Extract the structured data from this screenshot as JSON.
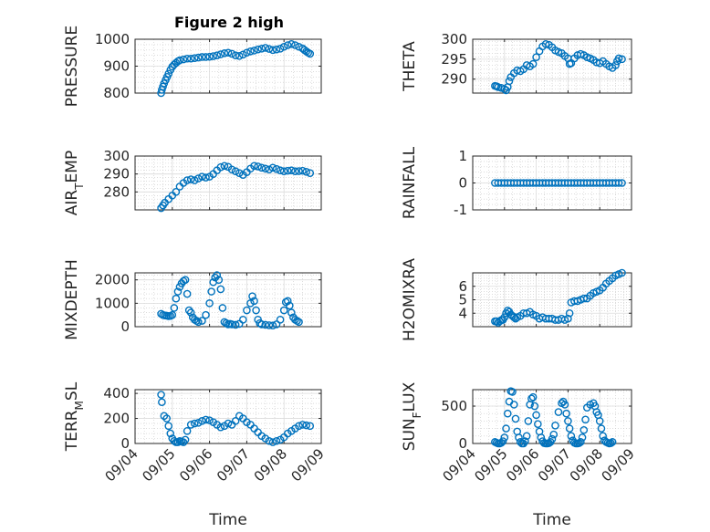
{
  "figure": {
    "title": "Figure 2 high",
    "colors": {
      "marker": "#0072BD",
      "axis": "#262626",
      "grid": "#c8c8c8"
    }
  },
  "chart_data": [
    {
      "id": "pressure",
      "type": "scatter",
      "ylabel": "PRESSURE",
      "ylabel_sub": "",
      "ylabel_post": "",
      "ylim": [
        800,
        1000
      ],
      "yticks": [
        800,
        900,
        1000
      ],
      "ytick_labels": [
        "800",
        "900",
        "1000"
      ],
      "xlim": [
        0,
        5
      ],
      "xticks": [
        0,
        1,
        2,
        3,
        4,
        5
      ],
      "xtick_labels": [
        "09/04",
        "09/05",
        "09/06",
        "09/07",
        "09/08",
        "09/09"
      ],
      "show_xtick_labels": false,
      "xlabel": "",
      "grid": true,
      "minor_grid": true,
      "series_name": "",
      "x": [
        0.7,
        0.72,
        0.75,
        0.78,
        0.82,
        0.86,
        0.9,
        0.95,
        1.0,
        1.05,
        1.1,
        1.15,
        1.2,
        1.3,
        1.4,
        1.5,
        1.6,
        1.7,
        1.8,
        1.9,
        2.0,
        2.1,
        2.2,
        2.3,
        2.4,
        2.5,
        2.6,
        2.7,
        2.8,
        2.9,
        3.0,
        3.1,
        3.2,
        3.3,
        3.4,
        3.5,
        3.6,
        3.7,
        3.8,
        3.9,
        4.0,
        4.1,
        4.2,
        4.3,
        4.4,
        4.5,
        4.55,
        4.6,
        4.65,
        4.7
      ],
      "values": [
        800,
        812,
        824,
        836,
        848,
        860,
        872,
        886,
        898,
        906,
        912,
        918,
        922,
        925,
        928,
        928,
        930,
        932,
        934,
        934,
        935,
        937,
        940,
        944,
        948,
        950,
        946,
        940,
        938,
        943,
        950,
        955,
        958,
        962,
        965,
        968,
        964,
        960,
        962,
        965,
        972,
        978,
        982,
        978,
        972,
        966,
        960,
        955,
        950,
        946
      ]
    },
    {
      "id": "theta",
      "type": "scatter",
      "ylabel": "THETA",
      "ylabel_sub": "",
      "ylabel_post": "",
      "ylim": [
        286.5,
        300
      ],
      "yticks": [
        290,
        295,
        300
      ],
      "ytick_labels": [
        "290",
        "295",
        "300"
      ],
      "xlim": [
        0,
        5
      ],
      "xticks": [
        0,
        1,
        2,
        3,
        4,
        5
      ],
      "xtick_labels": [
        "09/04",
        "09/05",
        "09/06",
        "09/07",
        "09/08",
        "09/09"
      ],
      "show_xtick_labels": false,
      "xlabel": "",
      "grid": true,
      "minor_grid": true,
      "series_name": "",
      "x": [
        0.7,
        0.75,
        0.8,
        0.9,
        1.0,
        1.05,
        1.1,
        1.15,
        1.2,
        1.3,
        1.4,
        1.5,
        1.6,
        1.7,
        1.8,
        1.9,
        2.0,
        2.1,
        2.2,
        2.3,
        2.4,
        2.5,
        2.6,
        2.7,
        2.8,
        2.9,
        3.0,
        3.05,
        3.1,
        3.2,
        3.3,
        3.4,
        3.5,
        3.6,
        3.7,
        3.8,
        3.9,
        4.0,
        4.1,
        4.2,
        4.3,
        4.4,
        4.5,
        4.55,
        4.6,
        4.7
      ],
      "values": [
        288.3,
        288.2,
        288.0,
        287.8,
        287.5,
        287.2,
        288.0,
        289.5,
        290.5,
        291.5,
        292.2,
        292.0,
        292.5,
        293.5,
        293.2,
        293.8,
        295.5,
        297.0,
        298.2,
        298.8,
        298.6,
        298.0,
        297.2,
        296.8,
        296.5,
        295.8,
        295.2,
        293.8,
        294.0,
        295.2,
        296.0,
        296.3,
        296.0,
        295.5,
        295.2,
        294.8,
        294.2,
        294.0,
        294.5,
        293.8,
        293.2,
        292.8,
        293.5,
        294.5,
        295.2,
        295.0
      ]
    },
    {
      "id": "air-temp",
      "type": "scatter",
      "ylabel": "AIR",
      "ylabel_sub": "T",
      "ylabel_post": "EMP",
      "ylim": [
        270,
        300
      ],
      "yticks": [
        280,
        290,
        300
      ],
      "ytick_labels": [
        "280",
        "290",
        "300"
      ],
      "xlim": [
        0,
        5
      ],
      "xticks": [
        0,
        1,
        2,
        3,
        4,
        5
      ],
      "xtick_labels": [
        "09/04",
        "09/05",
        "09/06",
        "09/07",
        "09/08",
        "09/09"
      ],
      "show_xtick_labels": false,
      "xlabel": "",
      "grid": true,
      "minor_grid": true,
      "series_name": "",
      "x": [
        0.7,
        0.75,
        0.8,
        0.9,
        1.0,
        1.1,
        1.2,
        1.3,
        1.4,
        1.5,
        1.6,
        1.7,
        1.8,
        1.9,
        2.0,
        2.1,
        2.2,
        2.3,
        2.4,
        2.5,
        2.6,
        2.7,
        2.8,
        2.9,
        3.0,
        3.1,
        3.2,
        3.3,
        3.4,
        3.5,
        3.6,
        3.7,
        3.8,
        3.9,
        4.0,
        4.1,
        4.2,
        4.3,
        4.4,
        4.5,
        4.6,
        4.7
      ],
      "values": [
        271,
        272.5,
        274,
        276,
        278,
        280,
        283,
        285,
        286.5,
        287,
        286.5,
        287.5,
        288.5,
        288,
        288.5,
        290,
        292,
        293.8,
        294.5,
        294,
        292.5,
        291.5,
        290.5,
        289.5,
        291,
        293,
        294.5,
        294.2,
        293.5,
        293,
        292.5,
        293.5,
        292.8,
        292,
        291.5,
        291.8,
        292,
        291.5,
        291.6,
        291.8,
        291.2,
        290.5
      ]
    },
    {
      "id": "rainfall",
      "type": "scatter",
      "ylabel": "RAINFALL",
      "ylabel_sub": "",
      "ylabel_post": "",
      "ylim": [
        -1,
        1
      ],
      "yticks": [
        -1,
        0,
        1
      ],
      "ytick_labels": [
        "-1",
        "0",
        "1"
      ],
      "xlim": [
        0,
        5
      ],
      "xticks": [
        0,
        1,
        2,
        3,
        4,
        5
      ],
      "xtick_labels": [
        "09/04",
        "09/05",
        "09/06",
        "09/07",
        "09/08",
        "09/09"
      ],
      "show_xtick_labels": false,
      "xlabel": "",
      "grid": true,
      "minor_grid": true,
      "series_name": "",
      "x": [
        0.7,
        0.8,
        0.9,
        1.0,
        1.1,
        1.2,
        1.3,
        1.4,
        1.5,
        1.6,
        1.7,
        1.8,
        1.9,
        2.0,
        2.1,
        2.2,
        2.3,
        2.4,
        2.5,
        2.6,
        2.7,
        2.8,
        2.9,
        3.0,
        3.1,
        3.2,
        3.3,
        3.4,
        3.5,
        3.6,
        3.7,
        3.8,
        3.9,
        4.0,
        4.1,
        4.2,
        4.3,
        4.4,
        4.5,
        4.6,
        4.7
      ],
      "values": [
        0,
        0,
        0,
        0,
        0,
        0,
        0,
        0,
        0,
        0,
        0,
        0,
        0,
        0,
        0,
        0,
        0,
        0,
        0,
        0,
        0,
        0,
        0,
        0,
        0,
        0,
        0,
        0,
        0,
        0,
        0,
        0,
        0,
        0,
        0,
        0,
        0,
        0,
        0,
        0,
        0
      ]
    },
    {
      "id": "mixdepth",
      "type": "scatter",
      "ylabel": "MIXDEPTH",
      "ylabel_sub": "",
      "ylabel_post": "",
      "ylim": [
        0,
        2300
      ],
      "yticks": [
        0,
        1000,
        2000
      ],
      "ytick_labels": [
        "0",
        "1000",
        "2000"
      ],
      "xlim": [
        0,
        5
      ],
      "xticks": [
        0,
        1,
        2,
        3,
        4,
        5
      ],
      "xtick_labels": [
        "09/04",
        "09/05",
        "09/06",
        "09/07",
        "09/08",
        "09/09"
      ],
      "show_xtick_labels": false,
      "xlabel": "",
      "grid": true,
      "minor_grid": true,
      "series_name": "",
      "x": [
        0.7,
        0.75,
        0.8,
        0.85,
        0.9,
        0.95,
        1.0,
        1.05,
        1.1,
        1.15,
        1.2,
        1.25,
        1.3,
        1.35,
        1.4,
        1.45,
        1.5,
        1.55,
        1.6,
        1.65,
        1.7,
        1.8,
        1.9,
        2.0,
        2.05,
        2.1,
        2.15,
        2.2,
        2.25,
        2.3,
        2.35,
        2.4,
        2.45,
        2.5,
        2.55,
        2.6,
        2.7,
        2.8,
        2.9,
        3.0,
        3.1,
        3.15,
        3.2,
        3.25,
        3.3,
        3.35,
        3.4,
        3.5,
        3.6,
        3.7,
        3.8,
        3.9,
        4.0,
        4.05,
        4.1,
        4.15,
        4.2,
        4.25,
        4.3,
        4.35,
        4.4
      ],
      "values": [
        550,
        500,
        480,
        470,
        450,
        460,
        500,
        800,
        1200,
        1500,
        1700,
        1850,
        1950,
        2000,
        1400,
        700,
        600,
        400,
        300,
        250,
        200,
        250,
        500,
        1000,
        1500,
        1900,
        2100,
        2200,
        2000,
        1600,
        800,
        200,
        150,
        100,
        120,
        100,
        80,
        120,
        300,
        700,
        1000,
        1300,
        1100,
        700,
        300,
        150,
        100,
        80,
        60,
        50,
        100,
        300,
        700,
        1050,
        1100,
        900,
        600,
        400,
        300,
        250,
        200
      ]
    },
    {
      "id": "h2omixra",
      "type": "scatter",
      "ylabel": "H2OMIXRA",
      "ylabel_sub": "",
      "ylabel_post": "",
      "ylim": [
        3,
        7
      ],
      "yticks": [
        4,
        5,
        6
      ],
      "ytick_labels": [
        "4",
        "5",
        "6"
      ],
      "xlim": [
        0,
        5
      ],
      "xticks": [
        0,
        1,
        2,
        3,
        4,
        5
      ],
      "xtick_labels": [
        "09/04",
        "09/05",
        "09/06",
        "09/07",
        "09/08",
        "09/09"
      ],
      "show_xtick_labels": false,
      "xlabel": "",
      "grid": true,
      "minor_grid": true,
      "series_name": "",
      "x": [
        0.7,
        0.75,
        0.8,
        0.85,
        0.9,
        0.95,
        1.0,
        1.05,
        1.1,
        1.15,
        1.2,
        1.25,
        1.3,
        1.35,
        1.4,
        1.5,
        1.6,
        1.7,
        1.8,
        1.9,
        2.0,
        2.1,
        2.2,
        2.3,
        2.4,
        2.5,
        2.6,
        2.7,
        2.8,
        2.9,
        3.0,
        3.05,
        3.1,
        3.2,
        3.3,
        3.4,
        3.5,
        3.6,
        3.7,
        3.8,
        3.9,
        4.0,
        4.1,
        4.2,
        4.3,
        4.4,
        4.5,
        4.6,
        4.7
      ],
      "values": [
        3.4,
        3.4,
        3.3,
        3.4,
        3.5,
        3.5,
        3.7,
        4.0,
        4.2,
        4.1,
        3.9,
        3.8,
        3.7,
        3.6,
        3.7,
        3.8,
        4.0,
        4.0,
        4.1,
        3.9,
        3.8,
        3.6,
        3.7,
        3.6,
        3.6,
        3.6,
        3.5,
        3.5,
        3.6,
        3.5,
        3.6,
        4.0,
        4.8,
        4.9,
        4.9,
        5.0,
        5.1,
        5.1,
        5.3,
        5.5,
        5.6,
        5.7,
        5.9,
        6.2,
        6.4,
        6.6,
        6.8,
        6.9,
        7.0
      ]
    },
    {
      "id": "terr-msl",
      "type": "scatter",
      "ylabel": "TERR",
      "ylabel_sub": "M",
      "ylabel_post": "SL",
      "ylim": [
        0,
        430
      ],
      "yticks": [
        0,
        200,
        400
      ],
      "ytick_labels": [
        "0",
        "200",
        "400"
      ],
      "xlim": [
        0,
        5
      ],
      "xticks": [
        0,
        1,
        2,
        3,
        4,
        5
      ],
      "xtick_labels": [
        "09/04",
        "09/05",
        "09/06",
        "09/07",
        "09/08",
        "09/09"
      ],
      "show_xtick_labels": true,
      "xlabel": "Time",
      "grid": true,
      "minor_grid": true,
      "series_name": "",
      "x": [
        0.7,
        0.72,
        0.78,
        0.85,
        0.9,
        0.95,
        1.0,
        1.05,
        1.1,
        1.15,
        1.2,
        1.25,
        1.3,
        1.35,
        1.4,
        1.5,
        1.6,
        1.7,
        1.8,
        1.9,
        2.0,
        2.1,
        2.2,
        2.3,
        2.4,
        2.5,
        2.6,
        2.7,
        2.8,
        2.9,
        3.0,
        3.1,
        3.2,
        3.3,
        3.4,
        3.5,
        3.6,
        3.7,
        3.8,
        3.9,
        4.0,
        4.1,
        4.2,
        4.3,
        4.4,
        4.5,
        4.6,
        4.7
      ],
      "values": [
        390,
        330,
        220,
        200,
        140,
        80,
        40,
        20,
        10,
        10,
        20,
        15,
        10,
        30,
        100,
        150,
        160,
        165,
        180,
        190,
        185,
        170,
        150,
        130,
        140,
        160,
        150,
        180,
        220,
        200,
        170,
        150,
        120,
        90,
        60,
        40,
        20,
        10,
        20,
        30,
        50,
        80,
        100,
        120,
        140,
        150,
        145,
        140
      ]
    },
    {
      "id": "sun-flux",
      "type": "scatter",
      "ylabel": "SUN",
      "ylabel_sub": "F",
      "ylabel_post": "LUX",
      "ylim": [
        0,
        720
      ],
      "yticks": [
        0,
        500
      ],
      "ytick_labels": [
        "0",
        "500"
      ],
      "xlim": [
        0,
        5
      ],
      "xticks": [
        0,
        1,
        2,
        3,
        4,
        5
      ],
      "xtick_labels": [
        "09/04",
        "09/05",
        "09/06",
        "09/07",
        "09/08",
        "09/09"
      ],
      "show_xtick_labels": true,
      "xlabel": "Time",
      "grid": true,
      "minor_grid": true,
      "series_name": "",
      "x": [
        0.7,
        0.75,
        0.8,
        0.85,
        0.9,
        0.95,
        1.0,
        1.05,
        1.1,
        1.15,
        1.2,
        1.25,
        1.3,
        1.35,
        1.4,
        1.45,
        1.5,
        1.55,
        1.6,
        1.65,
        1.7,
        1.75,
        1.8,
        1.85,
        1.9,
        1.95,
        2.0,
        2.05,
        2.1,
        2.15,
        2.2,
        2.25,
        2.3,
        2.35,
        2.4,
        2.45,
        2.5,
        2.55,
        2.6,
        2.7,
        2.8,
        2.85,
        2.9,
        2.95,
        3.0,
        3.05,
        3.1,
        3.15,
        3.2,
        3.25,
        3.3,
        3.35,
        3.4,
        3.45,
        3.5,
        3.55,
        3.6,
        3.7,
        3.8,
        3.85,
        3.9,
        3.95,
        4.0,
        4.05,
        4.1,
        4.15,
        4.2,
        4.25,
        4.3,
        4.35,
        4.4
      ],
      "values": [
        20,
        10,
        0,
        0,
        10,
        30,
        80,
        200,
        400,
        560,
        700,
        690,
        520,
        330,
        160,
        80,
        20,
        0,
        0,
        30,
        100,
        300,
        520,
        600,
        620,
        500,
        380,
        260,
        160,
        80,
        30,
        5,
        0,
        0,
        5,
        20,
        60,
        120,
        240,
        420,
        540,
        560,
        520,
        400,
        300,
        200,
        100,
        40,
        10,
        0,
        0,
        5,
        20,
        80,
        180,
        320,
        480,
        520,
        540,
        500,
        420,
        380,
        300,
        200,
        100,
        40,
        20,
        10,
        0,
        5,
        20
      ]
    }
  ]
}
